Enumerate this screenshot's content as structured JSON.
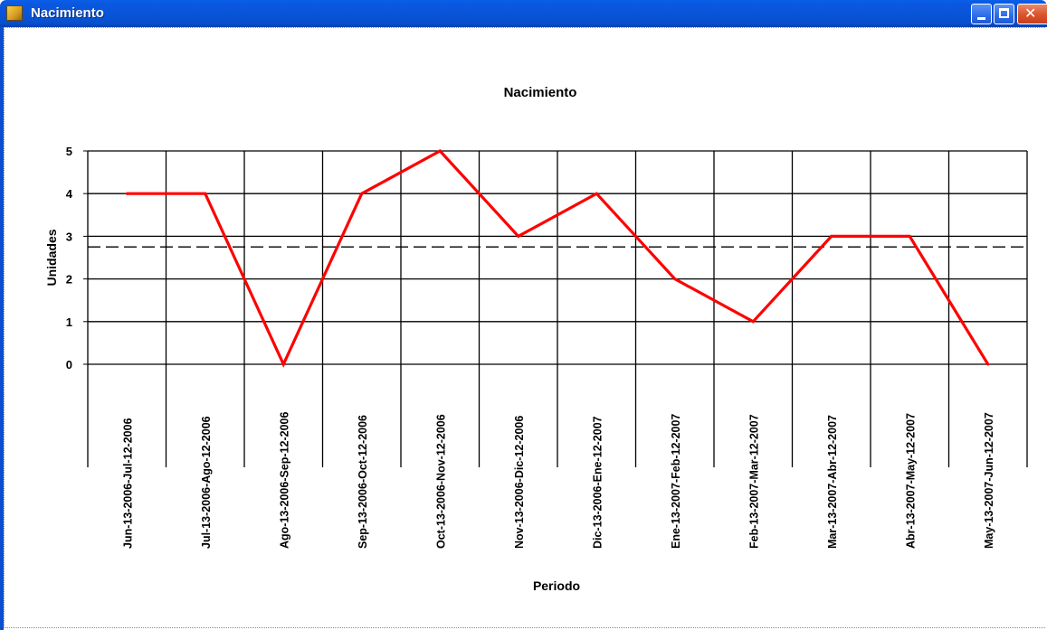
{
  "window": {
    "title": "Nacimiento",
    "buttons": {
      "minimize": "minimize",
      "maximize": "maximize",
      "close": "close"
    }
  },
  "colors": {
    "line": "#ff0000",
    "grid": "#000000",
    "titlebar": "#0a5fe8"
  },
  "chart_data": {
    "type": "line",
    "title": "Nacimiento",
    "xlabel": "Periodo",
    "ylabel": "Unidades",
    "ylim": [
      0,
      5
    ],
    "yticks": [
      "0",
      "1",
      "2",
      "3",
      "4",
      "5"
    ],
    "grid": true,
    "categories": [
      "Jun-13-2006-Jul-12-2006",
      "Jul-13-2006-Ago-12-2006",
      "Ago-13-2006-Sep-12-2006",
      "Sep-13-2006-Oct-12-2006",
      "Oct-13-2006-Nov-12-2006",
      "Nov-13-2006-Dic-12-2006",
      "Dic-13-2006-Ene-12-2007",
      "Ene-13-2007-Feb-12-2007",
      "Feb-13-2007-Mar-12-2007",
      "Mar-13-2007-Abr-12-2007",
      "Abr-13-2007-May-12-2007",
      "May-13-2007-Jun-12-2007"
    ],
    "series": [
      {
        "values": [
          4,
          4,
          0,
          4,
          5,
          3,
          4,
          2,
          1,
          3,
          3,
          0
        ]
      }
    ],
    "reference_line": {
      "value": 2.75,
      "style": "dashed"
    }
  }
}
